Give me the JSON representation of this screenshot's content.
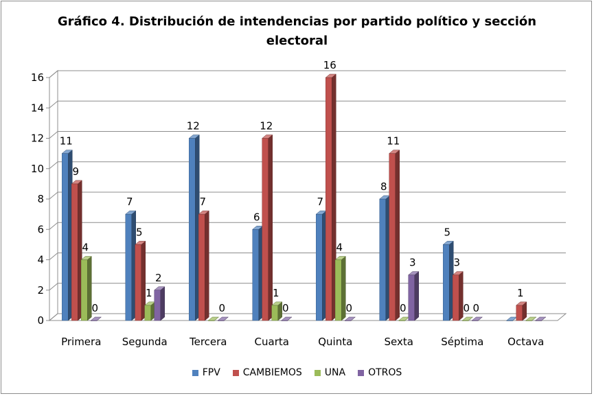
{
  "chart_data": {
    "type": "bar",
    "title": "Gráfico 4. Distribución de intendencias por partido político y sección electoral",
    "xlabel": "",
    "ylabel": "",
    "categories": [
      "Primera",
      "Segunda",
      "Tercera",
      "Cuarta",
      "Quinta",
      "Sexta",
      "Séptima",
      "Octava"
    ],
    "series": [
      {
        "name": "FPV",
        "color": "#4f81bd",
        "values": [
          11,
          7,
          12,
          6,
          7,
          8,
          5,
          0
        ]
      },
      {
        "name": "CAMBIEMOS",
        "color": "#c0504d",
        "values": [
          9,
          5,
          7,
          12,
          16,
          11,
          3,
          1
        ]
      },
      {
        "name": "UNA",
        "color": "#9bbb59",
        "values": [
          4,
          1,
          0,
          1,
          4,
          0,
          0,
          0
        ]
      },
      {
        "name": "OTROS",
        "color": "#8064a2",
        "values": [
          0,
          2,
          0,
          0,
          0,
          3,
          0,
          0
        ]
      }
    ],
    "data_labels": [
      [
        "11",
        "9",
        "4",
        "0"
      ],
      [
        "7",
        "5",
        "1",
        "2"
      ],
      [
        "12",
        "7",
        "",
        "0"
      ],
      [
        "6",
        "12",
        "1",
        "0"
      ],
      [
        "7",
        "16",
        "4",
        "0"
      ],
      [
        "8",
        "11",
        "0",
        "3"
      ],
      [
        "5",
        "3",
        "0",
        "0"
      ],
      [
        "",
        "1",
        "",
        ""
      ]
    ],
    "ylim": [
      0,
      16
    ],
    "yticks": [
      "0",
      "2",
      "4",
      "6",
      "8",
      "10",
      "12",
      "14",
      "16"
    ],
    "grid": true,
    "legend_position": "bottom",
    "style": "3d-clustered-column"
  }
}
